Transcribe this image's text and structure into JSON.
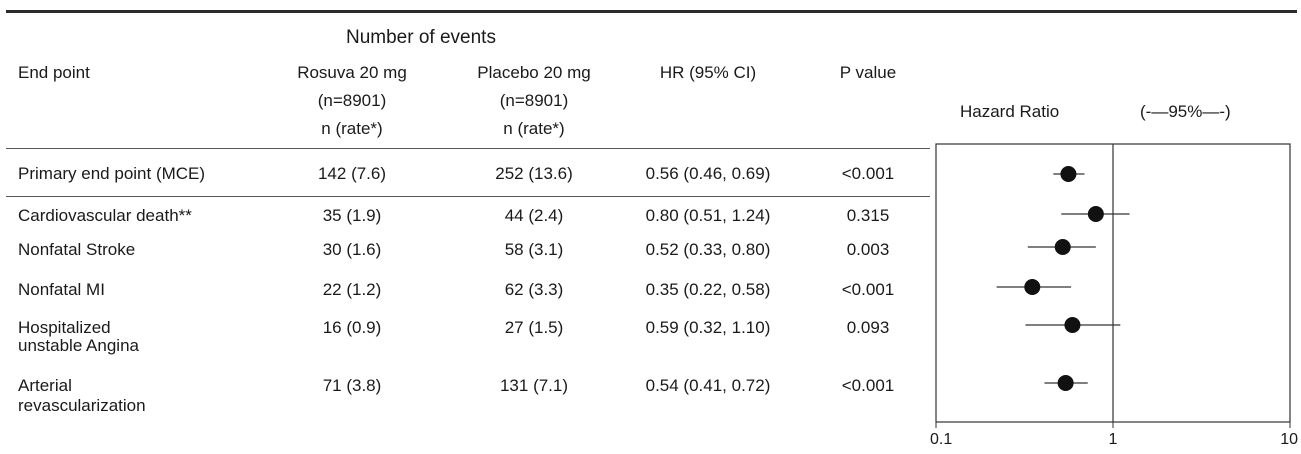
{
  "table": {
    "group_header": "Number of events",
    "columns": {
      "endpoint": "End point",
      "rosuva": [
        "Rosuva 20 mg",
        "(n=8901)",
        "n (rate*)"
      ],
      "placebo": [
        "Placebo 20 mg",
        "(n=8901)",
        "n (rate*)"
      ],
      "hr": "HR (95% CI)",
      "p": "P value"
    },
    "rows": [
      {
        "label": [
          "Primary end point (MCE)"
        ],
        "rosuva": "142 (7.6)",
        "placebo": "252 (13.6)",
        "hr": "0.56 (0.46, 0.69)",
        "p": "<0.001"
      },
      {
        "label": [
          "Cardiovascular death**"
        ],
        "rosuva": "35 (1.9)",
        "placebo": "44 (2.4)",
        "hr": "0.80 (0.51, 1.24)",
        "p": "0.315"
      },
      {
        "label": [
          "Nonfatal Stroke"
        ],
        "rosuva": "30 (1.6)",
        "placebo": "58 (3.1)",
        "hr": "0.52 (0.33, 0.80)",
        "p": "0.003"
      },
      {
        "label": [
          "Nonfatal MI"
        ],
        "rosuva": "22 (1.2)",
        "placebo": "62 (3.3)",
        "hr": "0.35 (0.22, 0.58)",
        "p": "<0.001"
      },
      {
        "label": [
          "Hospitalized",
          "unstable Angina"
        ],
        "rosuva": "16 (0.9)",
        "placebo": "27 (1.5)",
        "hr": "0.59 (0.32, 1.10)",
        "p": "0.093"
      },
      {
        "label": [
          "Arterial",
          "revascularization"
        ],
        "rosuva": "71 (3.8)",
        "placebo": "131 (7.1)",
        "hr": "0.54 (0.41, 0.72)",
        "p": "<0.001"
      }
    ]
  },
  "plot_header": {
    "title": "Hazard Ratio",
    "ci_legend": "(-—95%—-)"
  },
  "chart_data": {
    "type": "scatter",
    "title": "Hazard Ratio",
    "xscale": "log",
    "xlim": [
      0.1,
      10
    ],
    "x_ticks": [
      "0.1",
      "1",
      "10"
    ],
    "reference_line": 1,
    "points": [
      {
        "endpoint": "Primary end point (MCE)",
        "hr": 0.56,
        "lo": 0.46,
        "hi": 0.69
      },
      {
        "endpoint": "Cardiovascular death**",
        "hr": 0.8,
        "lo": 0.51,
        "hi": 1.24
      },
      {
        "endpoint": "Nonfatal Stroke",
        "hr": 0.52,
        "lo": 0.33,
        "hi": 0.8
      },
      {
        "endpoint": "Nonfatal MI",
        "hr": 0.35,
        "lo": 0.22,
        "hi": 0.58
      },
      {
        "endpoint": "Hospitalized unstable Angina",
        "hr": 0.59,
        "lo": 0.32,
        "hi": 1.1
      },
      {
        "endpoint": "Arterial revascularization",
        "hr": 0.54,
        "lo": 0.41,
        "hi": 0.72
      }
    ]
  }
}
